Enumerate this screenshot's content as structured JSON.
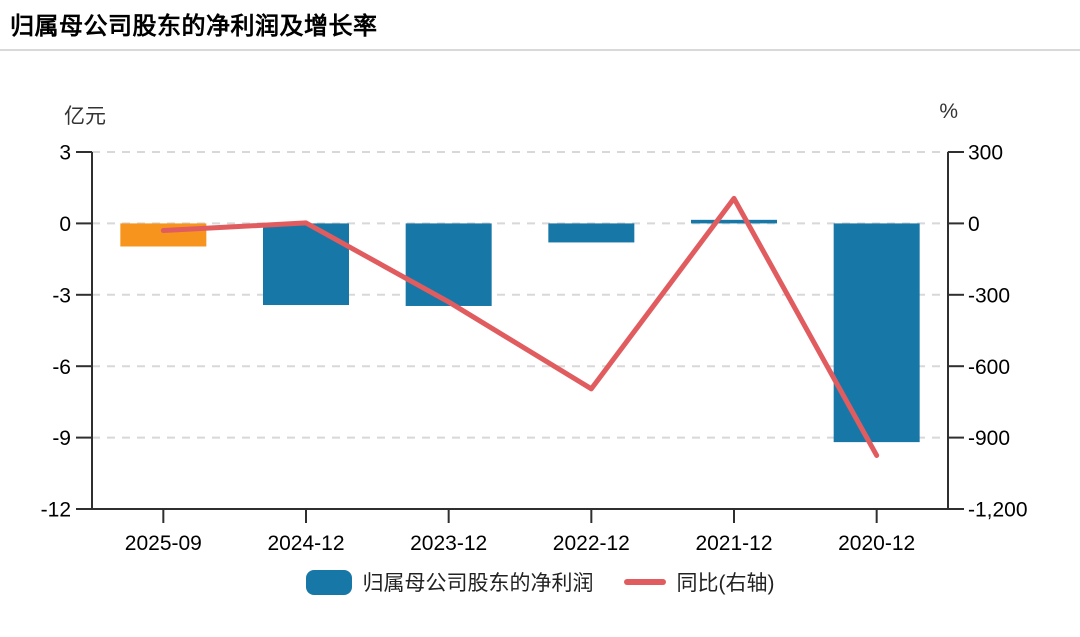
{
  "title": "归属母公司股东的净利润及增长率",
  "axes": {
    "left_unit": "亿元",
    "right_unit": "%",
    "left_tick_labels": [
      "3",
      "0",
      "-3",
      "-6",
      "-9",
      "-12"
    ],
    "left_tick_values": [
      3,
      0,
      -3,
      -6,
      -9,
      -12
    ],
    "right_tick_labels": [
      "300",
      "0",
      "-300",
      "-600",
      "-900",
      "-1,200"
    ],
    "right_tick_values": [
      300,
      0,
      -300,
      -600,
      -900,
      -1200
    ]
  },
  "legend": {
    "bar_label": "归属母公司股东的净利润",
    "line_label": "同比(右轴)"
  },
  "colors": {
    "bar_blue": "#1778A8",
    "bar_orange": "#F7941E",
    "line_red": "#E15C5F",
    "grid": "#D8D8D8",
    "axis": "#2F2F2F",
    "divider": "#D9D9D9",
    "text": "#000000"
  },
  "chart_data": {
    "type": "bar",
    "title": "归属母公司股东的净利润及增长率",
    "categories": [
      "2025-09",
      "2024-12",
      "2023-12",
      "2022-12",
      "2021-12",
      "2020-12"
    ],
    "series": [
      {
        "name": "归属母公司股东的净利润",
        "type": "bar",
        "axis": "left",
        "unit": "亿元",
        "values": [
          -0.97,
          -3.43,
          -3.47,
          -0.8,
          0.15,
          -9.19
        ],
        "point_colors": [
          "#F7941E",
          "#1778A8",
          "#1778A8",
          "#1778A8",
          "#1778A8",
          "#1778A8"
        ]
      },
      {
        "name": "同比(右轴)",
        "type": "line",
        "axis": "right",
        "unit": "%",
        "values": [
          -30,
          2,
          -330,
          -695,
          105,
          -975
        ]
      }
    ],
    "xlabel": "",
    "ylabel_left": "亿元",
    "ylabel_right": "%",
    "left_ylim": [
      -12,
      3
    ],
    "right_ylim": [
      -1200,
      300
    ],
    "grid": "horizontal-dashed",
    "legend_position": "bottom-center"
  }
}
